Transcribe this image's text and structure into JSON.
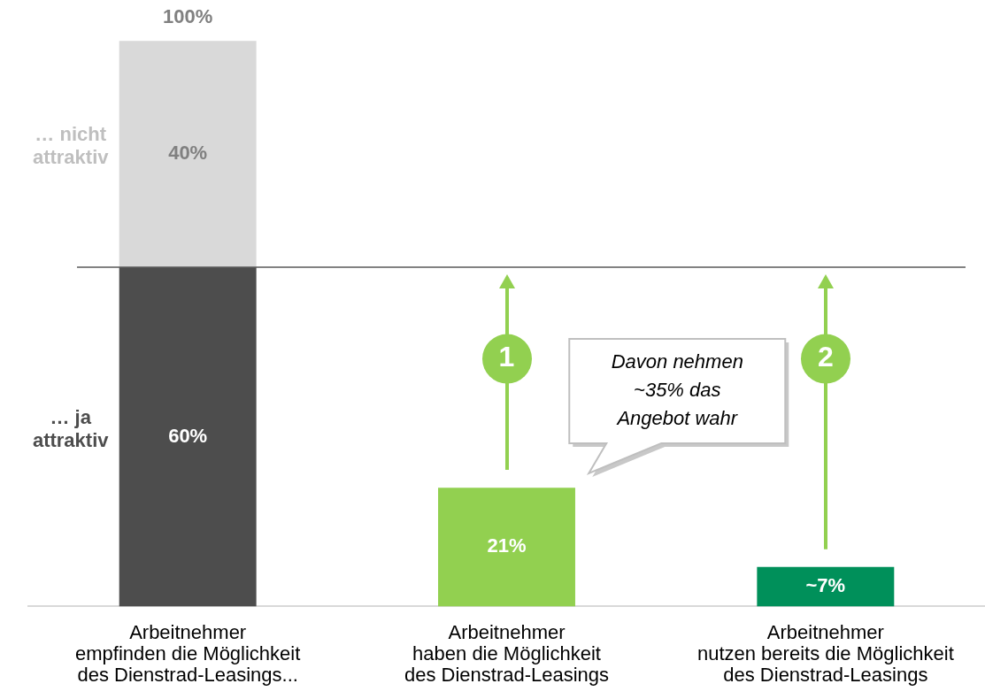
{
  "chart_data": {
    "type": "bar",
    "stacked": true,
    "categories": [
      "Arbeitnehmer empfinden die Möglichkeit des Dienstrad-Leasings...",
      "Arbeitnehmer haben die Möglichkeit des Dienstrad-Leasings",
      "Arbeitnehmer nutzen bereits die Möglichkeit des Dienstrad-Leasings"
    ],
    "series": [
      {
        "name": "… ja attraktiv",
        "color": "#4d4d4d",
        "colors": [
          "#4d4d4d",
          "#92d050",
          "#00905a"
        ],
        "values": [
          60,
          21,
          7
        ],
        "value_labels": [
          "60%",
          "21%",
          "~7%"
        ]
      },
      {
        "name": "… nicht attraktiv",
        "color": "#d9d9d9",
        "values": [
          40,
          null,
          null
        ],
        "value_labels": [
          "40%",
          null,
          null
        ]
      }
    ],
    "totals": [
      "100%",
      null,
      null
    ],
    "ref_lines": [
      {
        "axis": "y",
        "value": 60,
        "color": "#595959"
      }
    ],
    "annotations": [
      "1",
      "2",
      "Davon nehmen ~35% das Angebot wahr"
    ]
  }
}
